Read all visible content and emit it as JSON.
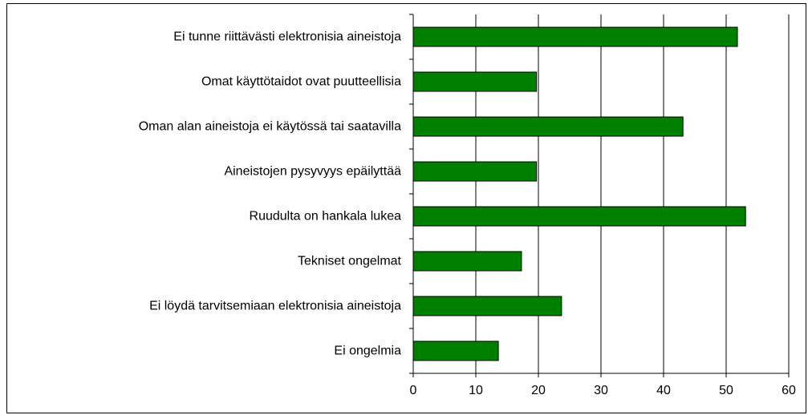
{
  "chart_data": {
    "type": "bar",
    "orientation": "horizontal",
    "categories": [
      "Ei tunne riittävästi elektronisia aineistoja",
      "Omat käyttötaidot ovat puutteellisia",
      "Oman alan aineistoja ei käytössä tai saatavilla",
      "Aineistojen pysyvyys epäilyttää",
      "Ruudulta on hankala lukea",
      "Tekniset ongelmat",
      "Ei löydä tarvitsemiaan elektronisia aineistoja",
      "Ei ongelmia"
    ],
    "values": [
      51.8,
      19.7,
      43.1,
      19.7,
      53.1,
      17.3,
      23.7,
      13.6
    ],
    "color": "#008000",
    "xlim": [
      0,
      60
    ],
    "xticks": [
      0,
      10,
      20,
      30,
      40,
      50,
      60
    ],
    "grid": true
  }
}
